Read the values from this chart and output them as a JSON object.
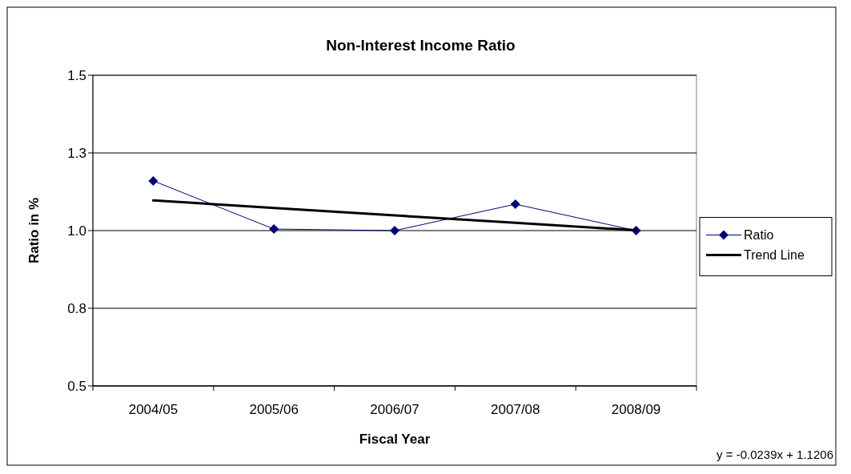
{
  "chart_data": {
    "type": "line",
    "title": "Non-Interest Income Ratio",
    "xlabel": "Fiscal Year",
    "ylabel": "Ratio in %",
    "categories": [
      "2004/05",
      "2005/06",
      "2006/07",
      "2007/08",
      "2008/09"
    ],
    "series": [
      {
        "name": "Ratio",
        "color": "#000080",
        "values": [
          1.16,
          1.005,
          1.0,
          1.085,
          1.0
        ],
        "marker": "diamond"
      },
      {
        "name": "Trend Line",
        "color": "#000000",
        "values": [
          1.097,
          1.073,
          1.049,
          1.025,
          1.001
        ],
        "marker": "none"
      }
    ],
    "ylim": [
      0.5,
      1.5
    ],
    "yticks": [
      0.5,
      {
        "value": 0.75,
        "label": "0.8"
      },
      {
        "value": 1,
        "label": "1.0"
      },
      {
        "value": 1.25,
        "label": "1.3"
      },
      1.5
    ],
    "grid": "y",
    "legend": "right",
    "annotations": [
      "y = -0.0239x + 1.1206"
    ]
  }
}
